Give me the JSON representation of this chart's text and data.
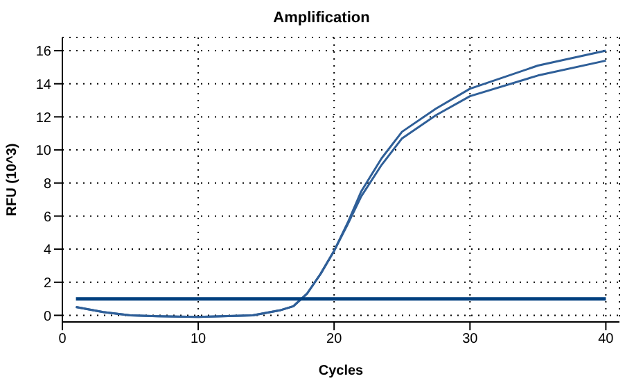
{
  "chart_data": {
    "type": "line",
    "title": "Amplification",
    "xlabel": "Cycles",
    "ylabel": "RFU (10^3)",
    "xlim": [
      0,
      41
    ],
    "xticks": [
      0,
      10,
      20,
      30,
      40
    ],
    "ylim": [
      -0.4,
      16.8
    ],
    "yticks": [
      0,
      2,
      4,
      6,
      8,
      10,
      12,
      14,
      16
    ],
    "grid": true,
    "legend": false,
    "marker": "none",
    "line_style": "solid",
    "series": [
      {
        "color": "#2f5f98",
        "x": [
          1,
          3,
          5,
          7,
          10,
          14,
          16,
          17,
          18,
          19,
          20,
          21,
          22,
          23.5,
          25,
          27.5,
          30,
          35,
          40
        ],
        "values": [
          0.5,
          0.2,
          0.0,
          -0.05,
          -0.1,
          0.0,
          0.3,
          0.55,
          1.3,
          2.5,
          3.9,
          5.6,
          7.5,
          9.5,
          11.1,
          12.5,
          13.7,
          15.1,
          16.0
        ]
      },
      {
        "color": "#2f5f98",
        "x": [
          1,
          3,
          5,
          7,
          10,
          14,
          16,
          17,
          18,
          19,
          20,
          21,
          22,
          23.5,
          25,
          27.5,
          30,
          35,
          40
        ],
        "values": [
          0.5,
          0.2,
          0.0,
          -0.05,
          -0.1,
          0.0,
          0.3,
          0.55,
          1.3,
          2.5,
          3.9,
          5.5,
          7.2,
          9.1,
          10.7,
          12.1,
          13.25,
          14.5,
          15.4
        ]
      },
      {
        "color": "#003f7f",
        "x": [
          1,
          40
        ],
        "values": [
          1.0,
          1.0
        ]
      }
    ]
  }
}
